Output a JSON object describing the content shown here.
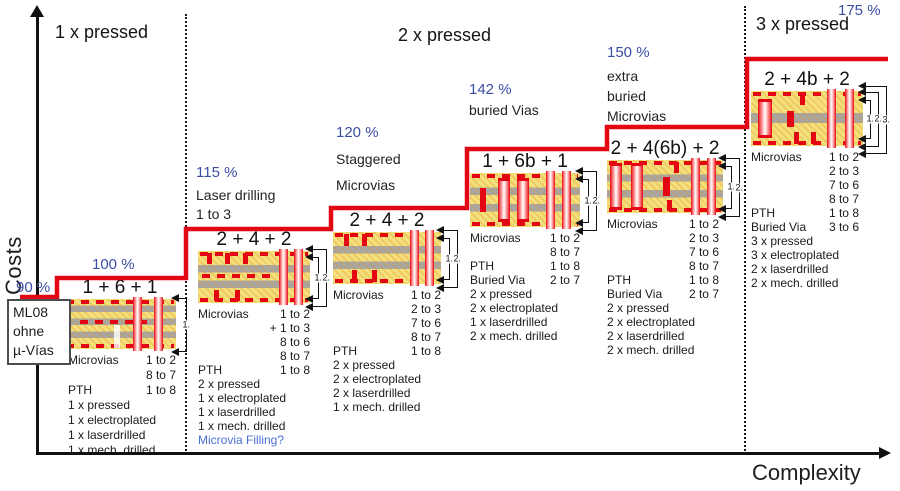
{
  "axes": {
    "y_label": "Costs",
    "x_label": "Complexity"
  },
  "colors": {
    "step_red": "#e30613",
    "percent_blue": "#3b4ea4",
    "link_blue": "#4a6fd4"
  },
  "sections": [
    {
      "label": "1 x pressed"
    },
    {
      "label": "2 x pressed"
    },
    {
      "label": "3 x pressed"
    }
  ],
  "baseline_box": {
    "percent": "90 %",
    "lines": [
      "ML08",
      "ohne",
      "µ-Vías"
    ]
  },
  "blocks": [
    {
      "percent": "100 %",
      "caption_lines": [],
      "title": "1 + 6 + 1",
      "bracket_labels": [
        "1."
      ],
      "rows": [
        {
          "label": "Microvias",
          "value": "1 to 2"
        },
        {
          "label": "",
          "value": "8 to 7"
        },
        {
          "label": "PTH",
          "value": "1 to 8"
        },
        {
          "label": "1 x pressed",
          "value": ""
        },
        {
          "label": "1 x electroplated",
          "value": ""
        },
        {
          "label": "1 x laserdrilled",
          "value": ""
        },
        {
          "label": "1 x mech. drilled",
          "value": ""
        }
      ]
    },
    {
      "percent": "115 %",
      "caption_lines": [
        "Laser drilling",
        "1 to 3"
      ],
      "title": "2 + 4 + 2",
      "bracket_labels": [
        "1.",
        "2."
      ],
      "rows": [
        {
          "label": "Microvias",
          "value": "1 to 2"
        },
        {
          "label": "",
          "value": "+ 1 to 3"
        },
        {
          "label": "",
          "value": "8 to 6"
        },
        {
          "label": "",
          "value": "8 to 7"
        },
        {
          "label": "PTH",
          "value": "1 to 8"
        },
        {
          "label": "2 x pressed",
          "value": ""
        },
        {
          "label": "1 x electroplated",
          "value": ""
        },
        {
          "label": "1 x laserdrilled",
          "value": ""
        },
        {
          "label": "1 x mech. drilled",
          "value": ""
        },
        {
          "label": "Microvia Filling?",
          "value": "",
          "blue": true
        }
      ]
    },
    {
      "percent": "120 %",
      "caption_lines": [
        "Staggered",
        "Microvias"
      ],
      "title": "2 + 4 + 2",
      "bracket_labels": [
        "1.",
        "2."
      ],
      "rows": [
        {
          "label": "Microvias",
          "value": "1 to 2"
        },
        {
          "label": "",
          "value": "2 to 3"
        },
        {
          "label": "",
          "value": "7 to 6"
        },
        {
          "label": "",
          "value": "8 to 7"
        },
        {
          "label": "PTH",
          "value": "1 to 8"
        },
        {
          "label": "2 x pressed",
          "value": ""
        },
        {
          "label": "2 x electroplated",
          "value": ""
        },
        {
          "label": "2 x laserdrilled",
          "value": ""
        },
        {
          "label": "1 x mech. drilled",
          "value": ""
        }
      ]
    },
    {
      "percent": "142 %",
      "caption_lines": [
        "buried Vias"
      ],
      "title": "1 + 6b + 1",
      "bracket_labels": [
        "1.",
        "2."
      ],
      "rows": [
        {
          "label": "Microvias",
          "value": "1 to 2"
        },
        {
          "label": "",
          "value": "8 to 7"
        },
        {
          "label": "PTH",
          "value": "1 to 8"
        },
        {
          "label": "Buried Via",
          "value": "2 to 7"
        },
        {
          "label": "2 x pressed",
          "value": ""
        },
        {
          "label": "2 x electroplated",
          "value": ""
        },
        {
          "label": "1 x laserdrilled",
          "value": ""
        },
        {
          "label": "2 x mech. drilled",
          "value": ""
        }
      ]
    },
    {
      "percent": "150 %",
      "caption_lines": [
        "extra",
        "buried",
        "Microvias"
      ],
      "title": "2 + 4(6b) + 2",
      "bracket_labels": [
        "1.",
        "2."
      ],
      "rows": [
        {
          "label": "Microvias",
          "value": "1 to 2"
        },
        {
          "label": "",
          "value": "2 to 3"
        },
        {
          "label": "",
          "value": "7 to 6"
        },
        {
          "label": "",
          "value": "8 to 7"
        },
        {
          "label": "PTH",
          "value": "1 to 8"
        },
        {
          "label": "Buried Via",
          "value": "2 to 7"
        },
        {
          "label": "2 x pressed",
          "value": ""
        },
        {
          "label": "2 x electroplated",
          "value": ""
        },
        {
          "label": "2 x laserdrilled",
          "value": ""
        },
        {
          "label": "2 x mech. drilled",
          "value": ""
        }
      ]
    },
    {
      "percent": "175 %",
      "caption_lines": [],
      "title": "2 + 4b + 2",
      "bracket_labels": [
        "1.",
        "2.",
        "3."
      ],
      "rows": [
        {
          "label": "Microvias",
          "value": "1 to 2"
        },
        {
          "label": "",
          "value": "2 to 3"
        },
        {
          "label": "",
          "value": "7 to 6"
        },
        {
          "label": "",
          "value": "8 to 7"
        },
        {
          "label": "PTH",
          "value": "1 to 8"
        },
        {
          "label": "Buried Via",
          "value": "3 to 6"
        },
        {
          "label": "3 x pressed",
          "value": ""
        },
        {
          "label": "3 x electroplated",
          "value": ""
        },
        {
          "label": "2 x laserdrilled",
          "value": ""
        },
        {
          "label": "2 x mech. drilled",
          "value": ""
        }
      ]
    }
  ]
}
